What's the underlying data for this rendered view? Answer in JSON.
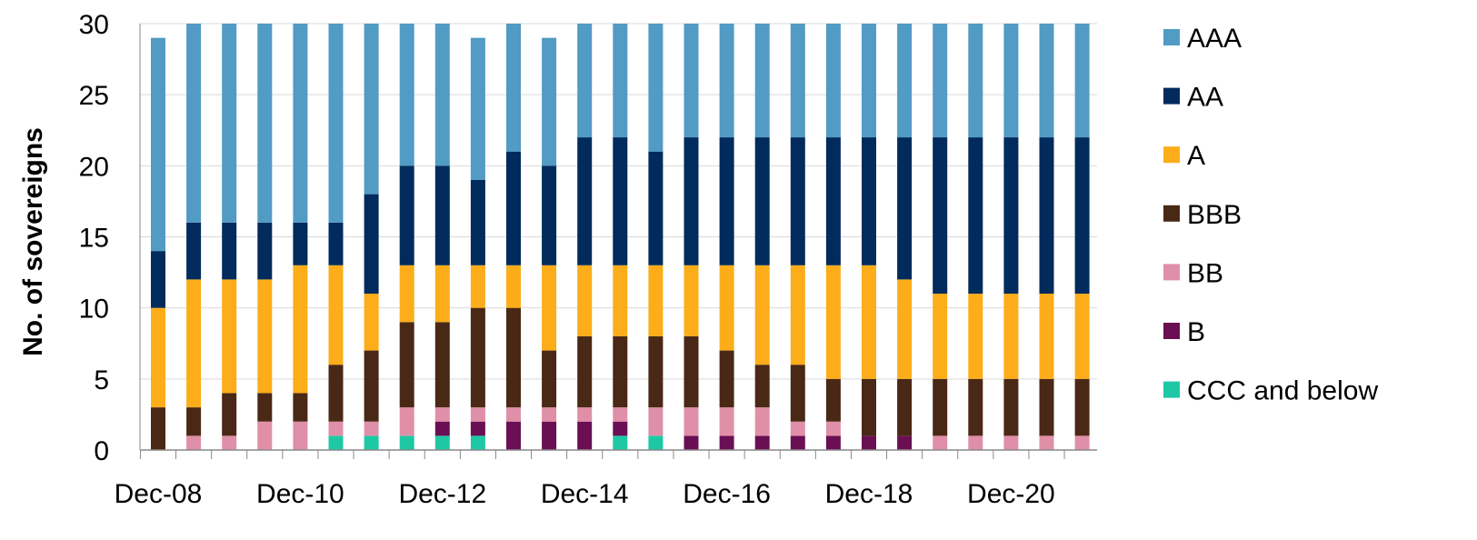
{
  "chart_data": {
    "type": "bar",
    "stacked": true,
    "ylabel": "No. of sovereigns",
    "xlabel": "",
    "ylim": [
      0,
      30
    ],
    "yticks": [
      0,
      5,
      10,
      15,
      20,
      25,
      30
    ],
    "grid": "horizontal",
    "legend_position": "right",
    "x_tick_labels": [
      "Dec-08",
      "Dec-10",
      "Dec-12",
      "Dec-14",
      "Dec-16",
      "Dec-18",
      "Dec-20"
    ],
    "x_tick_label_every": 4,
    "num_bars": 27,
    "series": [
      {
        "name": "CCC and below",
        "color": "#1ec8a5",
        "values": [
          0,
          0,
          0,
          0,
          0,
          1,
          1,
          1,
          1,
          1,
          0,
          0,
          0,
          1,
          1,
          0,
          0,
          0,
          0,
          0,
          0,
          0,
          0,
          0,
          0,
          0,
          0
        ]
      },
      {
        "name": "B",
        "color": "#6b0f54",
        "values": [
          0,
          0,
          0,
          0,
          0,
          0,
          0,
          0,
          1,
          1,
          2,
          2,
          2,
          1,
          0,
          1,
          1,
          1,
          1,
          1,
          1,
          1,
          0,
          0,
          0,
          0,
          0
        ]
      },
      {
        "name": "BB",
        "color": "#e08fa8",
        "values": [
          0,
          1,
          1,
          2,
          2,
          1,
          1,
          2,
          1,
          1,
          1,
          1,
          1,
          1,
          2,
          2,
          2,
          2,
          1,
          1,
          0,
          0,
          1,
          1,
          1,
          1,
          1
        ]
      },
      {
        "name": "BBB",
        "color": "#4a2816",
        "values": [
          3,
          2,
          3,
          2,
          2,
          4,
          5,
          6,
          6,
          7,
          7,
          4,
          5,
          5,
          5,
          5,
          4,
          3,
          4,
          3,
          4,
          4,
          4,
          4,
          4,
          4,
          4
        ]
      },
      {
        "name": "A",
        "color": "#fcad19",
        "values": [
          7,
          9,
          8,
          8,
          9,
          7,
          4,
          4,
          4,
          3,
          3,
          6,
          5,
          5,
          5,
          5,
          6,
          7,
          7,
          8,
          8,
          7,
          6,
          6,
          6,
          6,
          6
        ]
      },
      {
        "name": "AA",
        "color": "#002b5c",
        "values": [
          4,
          4,
          4,
          4,
          3,
          3,
          7,
          7,
          7,
          6,
          8,
          7,
          9,
          9,
          8,
          9,
          9,
          9,
          9,
          9,
          9,
          10,
          11,
          11,
          11,
          11,
          11
        ]
      },
      {
        "name": "AAA",
        "color": "#519bc4",
        "values": [
          15,
          14,
          14,
          14,
          14,
          14,
          12,
          10,
          10,
          10,
          9,
          9,
          8,
          8,
          9,
          8,
          8,
          8,
          8,
          8,
          8,
          8,
          8,
          8,
          8,
          8,
          8
        ]
      }
    ],
    "legend_order": [
      "AAA",
      "AA",
      "A",
      "BBB",
      "BB",
      "B",
      "CCC and below"
    ]
  }
}
